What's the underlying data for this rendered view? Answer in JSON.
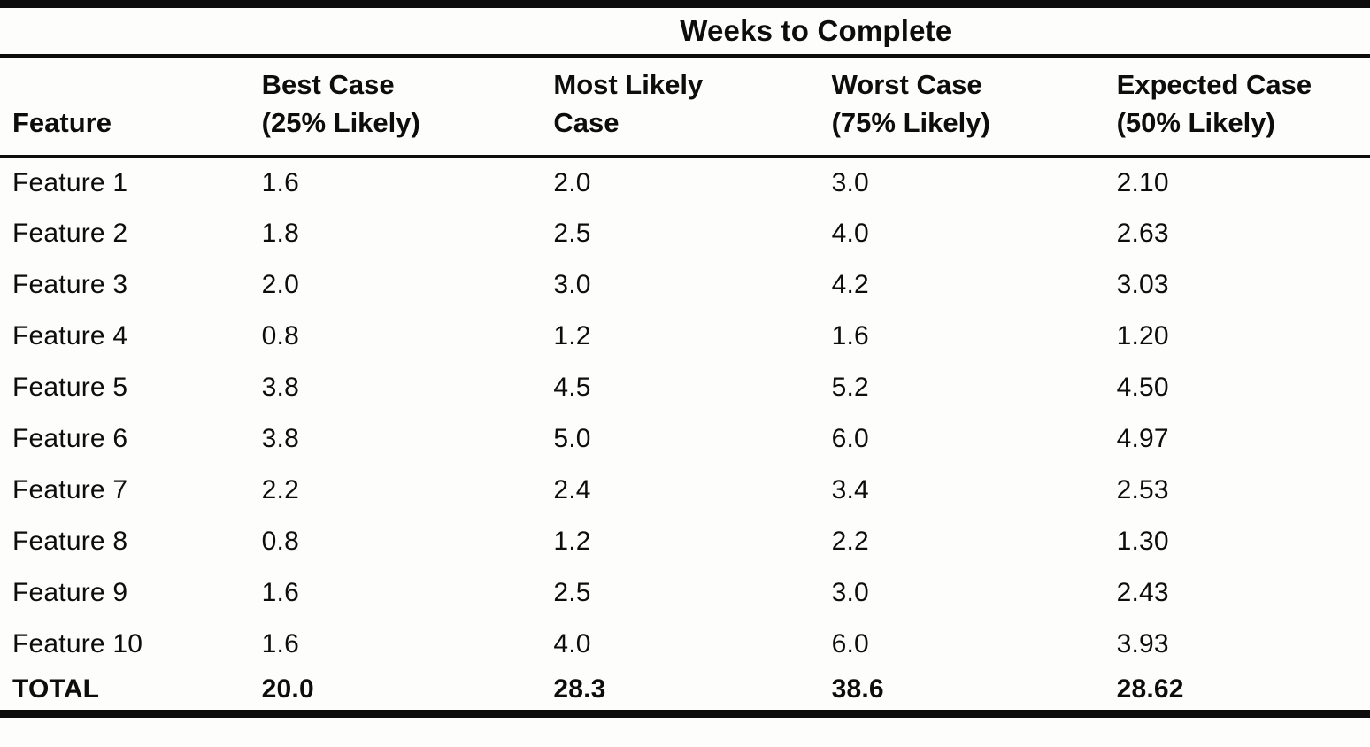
{
  "title": "Weeks to Complete",
  "table": {
    "spanner": "Weeks to Complete",
    "feature_header": "Feature",
    "col_headers": [
      {
        "line1": "Best Case",
        "line2": "(25% Likely)"
      },
      {
        "line1": "Most Likely",
        "line2": "Case"
      },
      {
        "line1": "Worst Case",
        "line2": "(75% Likely)"
      },
      {
        "line1": "Expected Case",
        "line2": "(50% Likely)"
      }
    ],
    "rows": [
      [
        "Feature 1",
        "1.6",
        "2.0",
        "3.0",
        "2.10"
      ],
      [
        "Feature 2",
        "1.8",
        "2.5",
        "4.0",
        "2.63"
      ],
      [
        "Feature 3",
        "2.0",
        "3.0",
        "4.2",
        "3.03"
      ],
      [
        "Feature 4",
        "0.8",
        "1.2",
        "1.6",
        "1.20"
      ],
      [
        "Feature 5",
        "3.8",
        "4.5",
        "5.2",
        "4.50"
      ],
      [
        "Feature 6",
        "3.8",
        "5.0",
        "6.0",
        "4.97"
      ],
      [
        "Feature 7",
        "2.2",
        "2.4",
        "3.4",
        "2.53"
      ],
      [
        "Feature 8",
        "0.8",
        "1.2",
        "2.2",
        "1.30"
      ],
      [
        "Feature 9",
        "1.6",
        "2.5",
        "3.0",
        "2.43"
      ],
      [
        "Feature 10",
        "1.6",
        "4.0",
        "6.0",
        "3.93"
      ]
    ],
    "total": [
      "TOTAL",
      "20.0",
      "28.3",
      "38.6",
      "28.62"
    ]
  },
  "chart_data": {
    "type": "table",
    "title": "Weeks to Complete",
    "columns": [
      "Feature",
      "Best Case (25% Likely)",
      "Most Likely Case",
      "Worst Case (75% Likely)",
      "Expected Case (50% Likely)"
    ],
    "rows": [
      [
        "Feature 1",
        1.6,
        2.0,
        3.0,
        2.1
      ],
      [
        "Feature 2",
        1.8,
        2.5,
        4.0,
        2.63
      ],
      [
        "Feature 3",
        2.0,
        3.0,
        4.2,
        3.03
      ],
      [
        "Feature 4",
        0.8,
        1.2,
        1.6,
        1.2
      ],
      [
        "Feature 5",
        3.8,
        4.5,
        5.2,
        4.5
      ],
      [
        "Feature 6",
        3.8,
        5.0,
        6.0,
        4.97
      ],
      [
        "Feature 7",
        2.2,
        2.4,
        3.4,
        2.53
      ],
      [
        "Feature 8",
        0.8,
        1.2,
        2.2,
        1.3
      ],
      [
        "Feature 9",
        1.6,
        2.5,
        3.0,
        2.43
      ],
      [
        "Feature 10",
        1.6,
        4.0,
        6.0,
        3.93
      ],
      [
        "TOTAL",
        20.0,
        28.3,
        38.6,
        28.62
      ]
    ],
    "colors": {
      "text": "#0d0d0d",
      "background": "#fdfdfb",
      "rule": "#0d0d0d"
    }
  }
}
